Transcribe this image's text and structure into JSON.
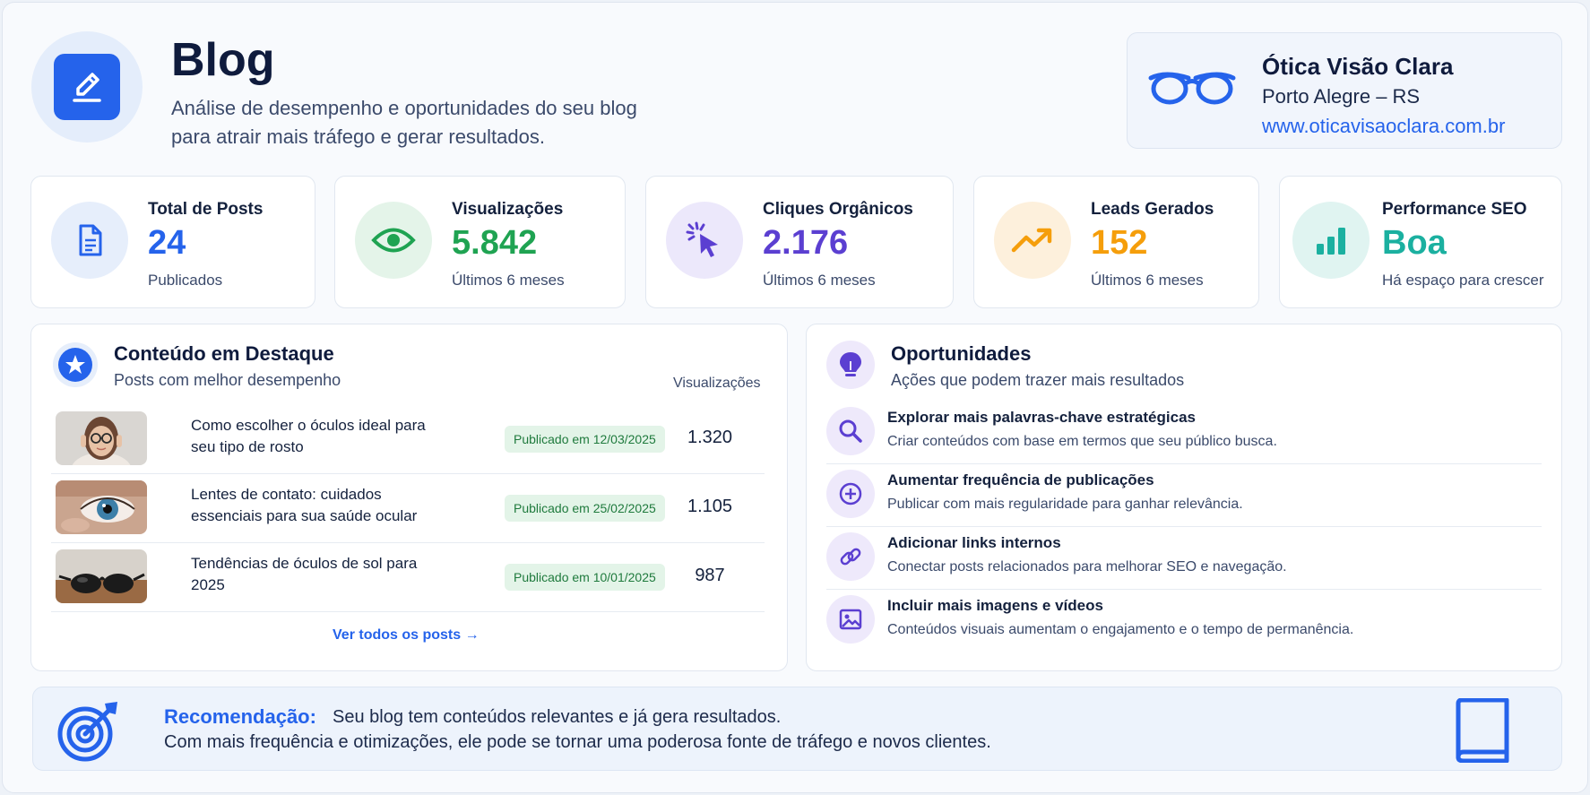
{
  "header": {
    "title": "Blog",
    "subtitle_line1": "Análise de desempenho e oportunidades do seu blog",
    "subtitle_line2": "para atrair mais tráfego e gerar resultados."
  },
  "company": {
    "name": "Ótica Visão Clara",
    "city": "Porto Alegre – RS",
    "url": "www.oticavisaoclara.com.br"
  },
  "stats": [
    {
      "label": "Total de Posts",
      "value": "24",
      "sub": "Publicados",
      "color": "#2563eb",
      "icon": "document-icon"
    },
    {
      "label": "Visualizações",
      "value": "5.842",
      "sub": "Últimos 6 meses",
      "color": "#1fa352",
      "icon": "eye-icon"
    },
    {
      "label": "Cliques Orgânicos",
      "value": "2.176",
      "sub": "Últimos 6 meses",
      "color": "#5b3fd1",
      "icon": "cursor-click-icon"
    },
    {
      "label": "Leads Gerados",
      "value": "152",
      "sub": "Últimos 6 meses",
      "color": "#f59e0b",
      "icon": "trending-up-icon"
    },
    {
      "label": "Performance SEO",
      "value": "Boa",
      "sub": "Há espaço para crescer",
      "color": "#1bb0a0",
      "icon": "bar-chart-icon"
    }
  ],
  "featured": {
    "title": "Conteúdo em Destaque",
    "subtitle": "Posts com melhor desempenho",
    "column_views": "Visualizações",
    "posts": [
      {
        "title": "Como escolher o óculos ideal para seu tipo de rosto",
        "published": "Publicado em 12/03/2025",
        "views": "1.320"
      },
      {
        "title": "Lentes de contato: cuidados essenciais para sua saúde ocular",
        "published": "Publicado em 25/02/2025",
        "views": "1.105"
      },
      {
        "title": "Tendências de óculos de sol para 2025",
        "published": "Publicado em 10/01/2025",
        "views": "987"
      }
    ],
    "see_all": "Ver todos os posts →"
  },
  "opportunities": {
    "title": "Oportunidades",
    "subtitle": "Ações que podem trazer mais resultados",
    "items": [
      {
        "title": "Explorar mais palavras-chave estratégicas",
        "desc": "Criar conteúdos com base em termos que seu público busca.",
        "icon": "search-icon"
      },
      {
        "title": "Aumentar frequência de publicações",
        "desc": "Publicar com mais regularidade para ganhar relevância.",
        "icon": "plus-circle-icon"
      },
      {
        "title": "Adicionar links internos",
        "desc": "Conectar posts relacionados para melhorar SEO e navegação.",
        "icon": "link-icon"
      },
      {
        "title": "Incluir mais imagens e vídeos",
        "desc": "Conteúdos visuais aumentam o engajamento e o tempo de permanência.",
        "icon": "image-icon"
      }
    ]
  },
  "recommendation": {
    "label": "Recomendação:",
    "line1": "Seu blog tem conteúdos relevantes e já gera resultados.",
    "line2": "Com mais frequência e otimizações, ele pode se tornar uma poderosa fonte de tráfego e novos clientes."
  }
}
